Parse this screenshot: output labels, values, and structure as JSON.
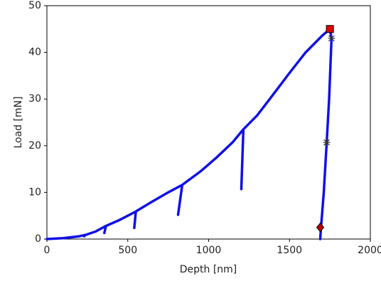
{
  "chart_data": {
    "type": "line",
    "x_label": "Depth [nm]",
    "y_label": "Load [mN]",
    "xlim": [
      0,
      2000
    ],
    "xticks": [
      0,
      500,
      1000,
      1500,
      2000
    ],
    "ylim": [
      0,
      50
    ],
    "yticks": [
      0,
      10,
      20,
      30,
      40,
      50
    ],
    "grid": false,
    "series": [
      {
        "color": "#1010e8",
        "x": [
          0,
          100,
          200,
          240,
          230,
          240,
          300,
          365,
          355,
          365,
          450,
          550,
          540,
          550,
          650,
          750,
          837,
          811,
          837,
          950,
          1050,
          1150,
          1215,
          1202,
          1215,
          1300,
          1400,
          1500,
          1600,
          1700,
          1750,
          1760,
          1745,
          1730,
          1712,
          1695,
          1690
        ],
        "values": [
          0,
          0.2,
          0.6,
          0.9,
          0.6,
          0.9,
          1.6,
          2.8,
          1.3,
          2.8,
          4.1,
          5.9,
          2.4,
          5.9,
          8.0,
          10.0,
          11.6,
          5.2,
          11.6,
          14.5,
          17.5,
          20.8,
          23.5,
          10.7,
          23.5,
          26.5,
          31.0,
          35.6,
          40.0,
          43.5,
          45.0,
          43.0,
          30.0,
          20.7,
          10.0,
          2.5,
          0
        ]
      }
    ],
    "markers": [
      {
        "x": 1750,
        "y": 45,
        "shape": "square",
        "color": "#e00000"
      },
      {
        "x": 1760,
        "y": 43,
        "shape": "asterisk",
        "color": "#333333"
      },
      {
        "x": 1730,
        "y": 20.7,
        "shape": "asterisk",
        "color": "#333333"
      },
      {
        "x": 1690,
        "y": 2.5,
        "shape": "diamond",
        "color": "#c00000"
      }
    ]
  }
}
